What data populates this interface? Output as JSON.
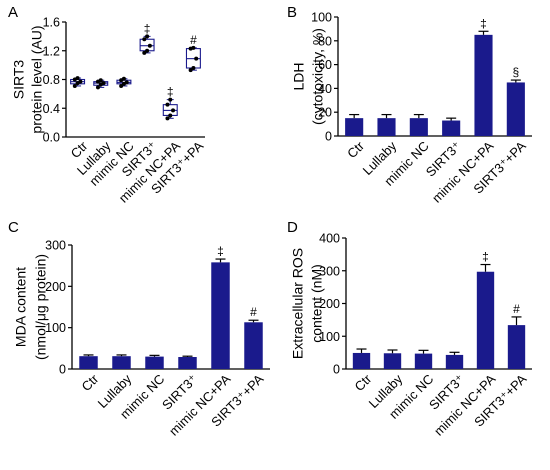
{
  "colors": {
    "bar_fill": "#1a1a8c",
    "axis": "#000000",
    "box_stroke": "#1a1a8c"
  },
  "chart_data": [
    {
      "panel": "A",
      "type": "box",
      "ylabel_line1": "SIRT3",
      "ylabel_line2": "protein level (AU)",
      "ylim": [
        0.0,
        1.6
      ],
      "yticks": [
        "0.0",
        "0.4",
        "0.8",
        "1.2",
        "1.6"
      ],
      "categories": [
        "Ctr",
        "Lullaby",
        "mimic NC",
        "SIRT3⁺",
        "mimic NC+PA",
        "SIRT3⁺+PA"
      ],
      "boxes": [
        {
          "min": 0.71,
          "q1": 0.74,
          "median": 0.77,
          "q3": 0.8,
          "max": 0.82,
          "points": [
            0.71,
            0.75,
            0.77,
            0.8,
            0.82
          ],
          "mark": ""
        },
        {
          "min": 0.69,
          "q1": 0.72,
          "median": 0.75,
          "q3": 0.77,
          "max": 0.79,
          "points": [
            0.69,
            0.73,
            0.75,
            0.77,
            0.79
          ],
          "mark": ""
        },
        {
          "min": 0.71,
          "q1": 0.74,
          "median": 0.76,
          "q3": 0.79,
          "max": 0.81,
          "points": [
            0.71,
            0.74,
            0.76,
            0.79,
            0.81
          ],
          "mark": ""
        },
        {
          "min": 1.17,
          "q1": 1.2,
          "median": 1.27,
          "q3": 1.36,
          "max": 1.4,
          "points": [
            1.17,
            1.2,
            1.27,
            1.36,
            1.4
          ],
          "mark": "‡"
        },
        {
          "min": 0.26,
          "q1": 0.3,
          "median": 0.37,
          "q3": 0.45,
          "max": 0.52,
          "points": [
            0.26,
            0.3,
            0.37,
            0.45,
            0.52
          ],
          "mark": "‡"
        },
        {
          "min": 0.93,
          "q1": 0.96,
          "median": 1.09,
          "q3": 1.23,
          "max": 1.24,
          "points": [
            0.93,
            0.96,
            1.09,
            1.23,
            1.24
          ],
          "mark": "#"
        }
      ]
    },
    {
      "panel": "B",
      "type": "bar",
      "ylabel_line1": "LDH",
      "ylabel_line2": "(cytotoxicity, %)",
      "ylim": [
        0,
        100
      ],
      "yticks": [
        "0",
        "20",
        "40",
        "60",
        "80",
        "100"
      ],
      "categories": [
        "Ctr",
        "Lullaby",
        "mimic NC",
        "SIRT3⁺",
        "mimic NC+PA",
        "SIRT3⁺+PA"
      ],
      "values": [
        15,
        15,
        15,
        13,
        85,
        45
      ],
      "errors": [
        3,
        3,
        3,
        2,
        3,
        2
      ],
      "marks": [
        "",
        "",
        "",
        "",
        "‡",
        "§"
      ]
    },
    {
      "panel": "C",
      "type": "bar",
      "ylabel_line1": "MDA content",
      "ylabel_line2": "(nmol/μg protein)",
      "ylim": [
        0,
        300
      ],
      "yticks": [
        "0",
        "100",
        "200",
        "300"
      ],
      "categories": [
        "Ctr",
        "Lullaby",
        "mimic NC",
        "SIRT3⁺",
        "mimic NC+PA",
        "SIRT3⁺+PA"
      ],
      "values": [
        31,
        31,
        30,
        29,
        258,
        113
      ],
      "errors": [
        3,
        3,
        3,
        2,
        8,
        5
      ],
      "marks": [
        "",
        "",
        "",
        "",
        "‡",
        "#"
      ]
    },
    {
      "panel": "D",
      "type": "bar",
      "ylabel_line1": "Extracellular ROS",
      "ylabel_line2": "content (nM)",
      "ylim": [
        0,
        400
      ],
      "yticks": [
        "0",
        "100",
        "200",
        "300",
        "400"
      ],
      "categories": [
        "Ctr",
        "Lullaby",
        "mimic NC",
        "SIRT3⁺",
        "mimic NC+PA",
        "SIRT3⁺+PA"
      ],
      "values": [
        49,
        48,
        47,
        43,
        297,
        134
      ],
      "errors": [
        12,
        10,
        10,
        8,
        22,
        25
      ],
      "marks": [
        "",
        "",
        "",
        "",
        "‡",
        "#"
      ]
    }
  ]
}
